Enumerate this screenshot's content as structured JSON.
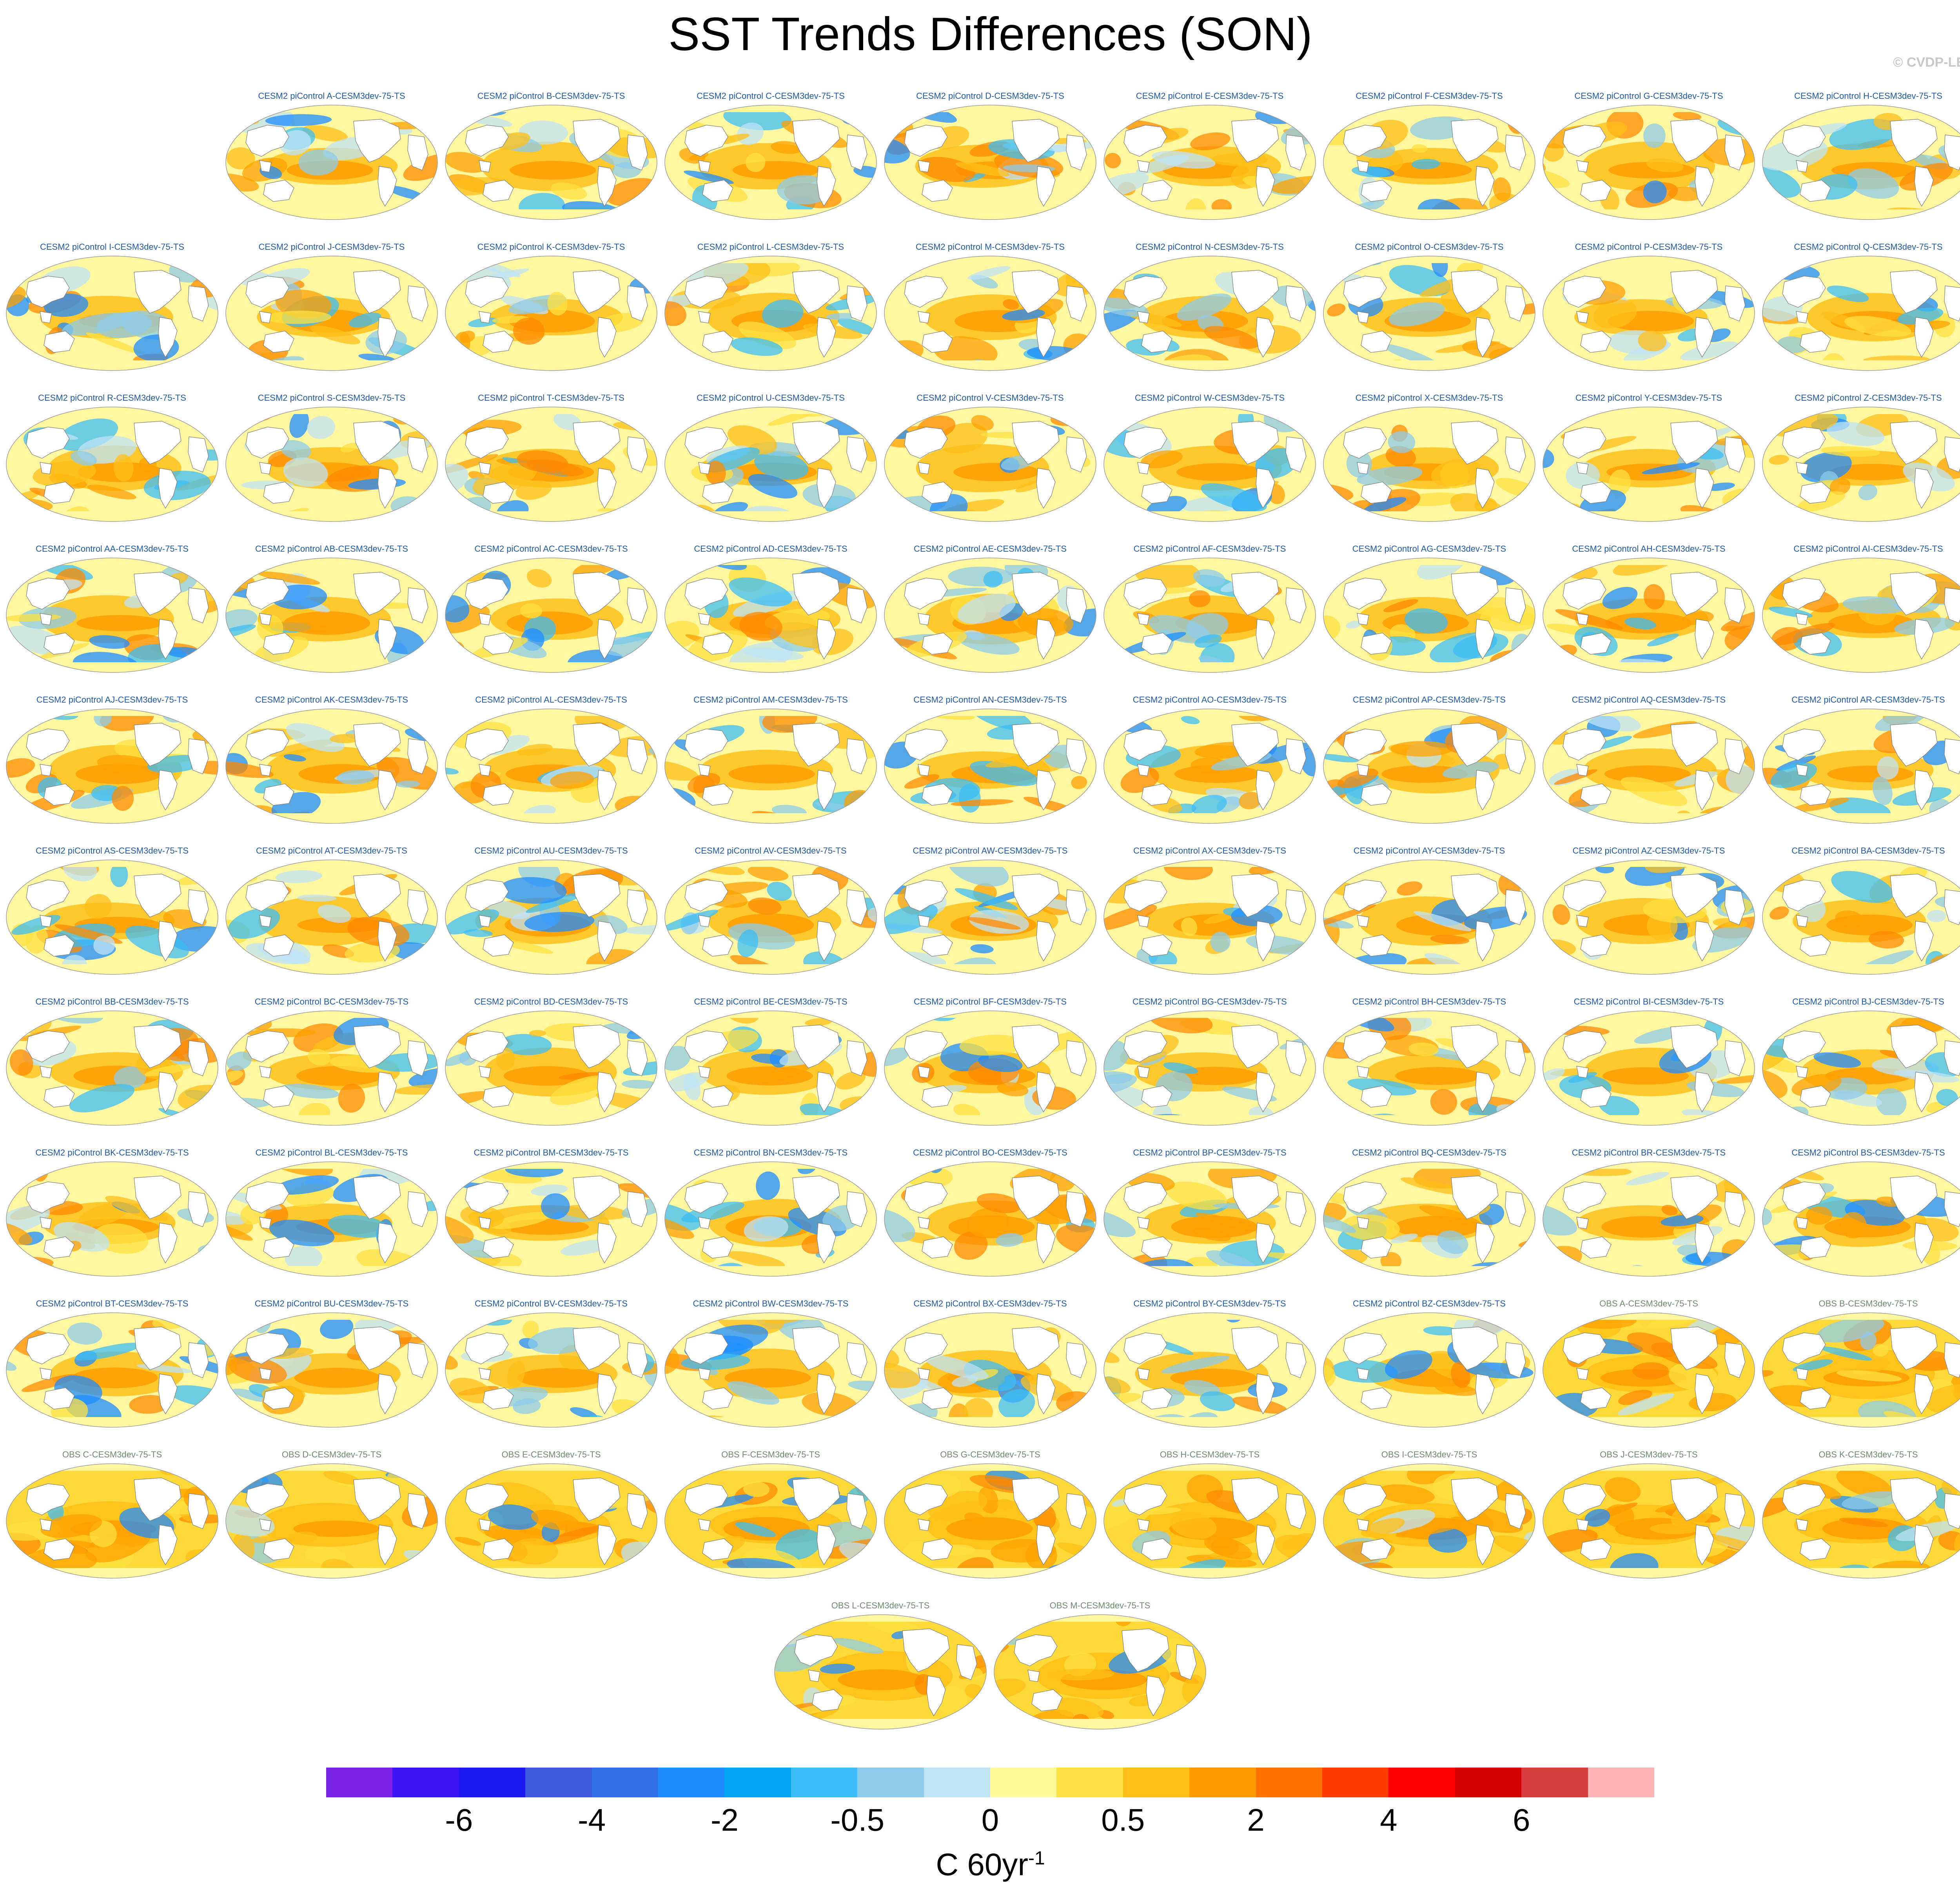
{
  "title": "SST Trends Differences (SON)",
  "copyright": "© CVDP-LE",
  "units": {
    "base": "C 60yr",
    "exponent": "-1"
  },
  "colorbar": {
    "colors": [
      "#7b22e8",
      "#3b13f2",
      "#1a1af0",
      "#3f58e0",
      "#2e6fe6",
      "#1e8cff",
      "#00a6f0",
      "#3cbdf5",
      "#8ccbe9",
      "#bde3f5",
      "#fff99c",
      "#ffe040",
      "#ffbf18",
      "#ff9a00",
      "#ff7200",
      "#ff3c00",
      "#ff0000",
      "#d40000",
      "#d63c3c",
      "#ffb4b4"
    ],
    "tick_labels": [
      "-6",
      "-4",
      "-2",
      "-0.5",
      "0",
      "0.5",
      "2",
      "4",
      "6"
    ]
  },
  "panels": [
    {
      "label": "CESM2 piControl A-CESM3dev-75-TS",
      "kind": "model"
    },
    {
      "label": "CESM2 piControl B-CESM3dev-75-TS",
      "kind": "model"
    },
    {
      "label": "CESM2 piControl C-CESM3dev-75-TS",
      "kind": "model"
    },
    {
      "label": "CESM2 piControl D-CESM3dev-75-TS",
      "kind": "model"
    },
    {
      "label": "CESM2 piControl E-CESM3dev-75-TS",
      "kind": "model"
    },
    {
      "label": "CESM2 piControl F-CESM3dev-75-TS",
      "kind": "model"
    },
    {
      "label": "CESM2 piControl G-CESM3dev-75-TS",
      "kind": "model"
    },
    {
      "label": "CESM2 piControl H-CESM3dev-75-TS",
      "kind": "model"
    },
    {
      "label": "CESM2 piControl I-CESM3dev-75-TS",
      "kind": "model"
    },
    {
      "label": "CESM2 piControl J-CESM3dev-75-TS",
      "kind": "model"
    },
    {
      "label": "CESM2 piControl K-CESM3dev-75-TS",
      "kind": "model"
    },
    {
      "label": "CESM2 piControl L-CESM3dev-75-TS",
      "kind": "model"
    },
    {
      "label": "CESM2 piControl M-CESM3dev-75-TS",
      "kind": "model"
    },
    {
      "label": "CESM2 piControl N-CESM3dev-75-TS",
      "kind": "model"
    },
    {
      "label": "CESM2 piControl O-CESM3dev-75-TS",
      "kind": "model"
    },
    {
      "label": "CESM2 piControl P-CESM3dev-75-TS",
      "kind": "model"
    },
    {
      "label": "CESM2 piControl Q-CESM3dev-75-TS",
      "kind": "model"
    },
    {
      "label": "CESM2 piControl R-CESM3dev-75-TS",
      "kind": "model"
    },
    {
      "label": "CESM2 piControl S-CESM3dev-75-TS",
      "kind": "model"
    },
    {
      "label": "CESM2 piControl T-CESM3dev-75-TS",
      "kind": "model"
    },
    {
      "label": "CESM2 piControl U-CESM3dev-75-TS",
      "kind": "model"
    },
    {
      "label": "CESM2 piControl V-CESM3dev-75-TS",
      "kind": "model"
    },
    {
      "label": "CESM2 piControl W-CESM3dev-75-TS",
      "kind": "model"
    },
    {
      "label": "CESM2 piControl X-CESM3dev-75-TS",
      "kind": "model"
    },
    {
      "label": "CESM2 piControl Y-CESM3dev-75-TS",
      "kind": "model"
    },
    {
      "label": "CESM2 piControl Z-CESM3dev-75-TS",
      "kind": "model"
    },
    {
      "label": "CESM2 piControl AA-CESM3dev-75-TS",
      "kind": "model"
    },
    {
      "label": "CESM2 piControl AB-CESM3dev-75-TS",
      "kind": "model"
    },
    {
      "label": "CESM2 piControl AC-CESM3dev-75-TS",
      "kind": "model"
    },
    {
      "label": "CESM2 piControl AD-CESM3dev-75-TS",
      "kind": "model"
    },
    {
      "label": "CESM2 piControl AE-CESM3dev-75-TS",
      "kind": "model"
    },
    {
      "label": "CESM2 piControl AF-CESM3dev-75-TS",
      "kind": "model"
    },
    {
      "label": "CESM2 piControl AG-CESM3dev-75-TS",
      "kind": "model"
    },
    {
      "label": "CESM2 piControl AH-CESM3dev-75-TS",
      "kind": "model"
    },
    {
      "label": "CESM2 piControl AI-CESM3dev-75-TS",
      "kind": "model"
    },
    {
      "label": "CESM2 piControl AJ-CESM3dev-75-TS",
      "kind": "model"
    },
    {
      "label": "CESM2 piControl AK-CESM3dev-75-TS",
      "kind": "model"
    },
    {
      "label": "CESM2 piControl AL-CESM3dev-75-TS",
      "kind": "model"
    },
    {
      "label": "CESM2 piControl AM-CESM3dev-75-TS",
      "kind": "model"
    },
    {
      "label": "CESM2 piControl AN-CESM3dev-75-TS",
      "kind": "model"
    },
    {
      "label": "CESM2 piControl AO-CESM3dev-75-TS",
      "kind": "model"
    },
    {
      "label": "CESM2 piControl AP-CESM3dev-75-TS",
      "kind": "model"
    },
    {
      "label": "CESM2 piControl AQ-CESM3dev-75-TS",
      "kind": "model"
    },
    {
      "label": "CESM2 piControl AR-CESM3dev-75-TS",
      "kind": "model"
    },
    {
      "label": "CESM2 piControl AS-CESM3dev-75-TS",
      "kind": "model"
    },
    {
      "label": "CESM2 piControl AT-CESM3dev-75-TS",
      "kind": "model"
    },
    {
      "label": "CESM2 piControl AU-CESM3dev-75-TS",
      "kind": "model"
    },
    {
      "label": "CESM2 piControl AV-CESM3dev-75-TS",
      "kind": "model"
    },
    {
      "label": "CESM2 piControl AW-CESM3dev-75-TS",
      "kind": "model"
    },
    {
      "label": "CESM2 piControl AX-CESM3dev-75-TS",
      "kind": "model"
    },
    {
      "label": "CESM2 piControl AY-CESM3dev-75-TS",
      "kind": "model"
    },
    {
      "label": "CESM2 piControl AZ-CESM3dev-75-TS",
      "kind": "model"
    },
    {
      "label": "CESM2 piControl BA-CESM3dev-75-TS",
      "kind": "model"
    },
    {
      "label": "CESM2 piControl BB-CESM3dev-75-TS",
      "kind": "model"
    },
    {
      "label": "CESM2 piControl BC-CESM3dev-75-TS",
      "kind": "model"
    },
    {
      "label": "CESM2 piControl BD-CESM3dev-75-TS",
      "kind": "model"
    },
    {
      "label": "CESM2 piControl BE-CESM3dev-75-TS",
      "kind": "model"
    },
    {
      "label": "CESM2 piControl BF-CESM3dev-75-TS",
      "kind": "model"
    },
    {
      "label": "CESM2 piControl BG-CESM3dev-75-TS",
      "kind": "model"
    },
    {
      "label": "CESM2 piControl BH-CESM3dev-75-TS",
      "kind": "model"
    },
    {
      "label": "CESM2 piControl BI-CESM3dev-75-TS",
      "kind": "model"
    },
    {
      "label": "CESM2 piControl BJ-CESM3dev-75-TS",
      "kind": "model"
    },
    {
      "label": "CESM2 piControl BK-CESM3dev-75-TS",
      "kind": "model"
    },
    {
      "label": "CESM2 piControl BL-CESM3dev-75-TS",
      "kind": "model"
    },
    {
      "label": "CESM2 piControl BM-CESM3dev-75-TS",
      "kind": "model"
    },
    {
      "label": "CESM2 piControl BN-CESM3dev-75-TS",
      "kind": "model"
    },
    {
      "label": "CESM2 piControl BO-CESM3dev-75-TS",
      "kind": "model"
    },
    {
      "label": "CESM2 piControl BP-CESM3dev-75-TS",
      "kind": "model"
    },
    {
      "label": "CESM2 piControl BQ-CESM3dev-75-TS",
      "kind": "model"
    },
    {
      "label": "CESM2 piControl BR-CESM3dev-75-TS",
      "kind": "model"
    },
    {
      "label": "CESM2 piControl BS-CESM3dev-75-TS",
      "kind": "model"
    },
    {
      "label": "CESM2 piControl BT-CESM3dev-75-TS",
      "kind": "model"
    },
    {
      "label": "CESM2 piControl BU-CESM3dev-75-TS",
      "kind": "model"
    },
    {
      "label": "CESM2 piControl BV-CESM3dev-75-TS",
      "kind": "model"
    },
    {
      "label": "CESM2 piControl BW-CESM3dev-75-TS",
      "kind": "model"
    },
    {
      "label": "CESM2 piControl BX-CESM3dev-75-TS",
      "kind": "model"
    },
    {
      "label": "CESM2 piControl BY-CESM3dev-75-TS",
      "kind": "model"
    },
    {
      "label": "CESM2 piControl BZ-CESM3dev-75-TS",
      "kind": "model"
    },
    {
      "label": "OBS A-CESM3dev-75-TS",
      "kind": "obs"
    },
    {
      "label": "OBS B-CESM3dev-75-TS",
      "kind": "obs"
    },
    {
      "label": "OBS C-CESM3dev-75-TS",
      "kind": "obs"
    },
    {
      "label": "OBS D-CESM3dev-75-TS",
      "kind": "obs"
    },
    {
      "label": "OBS E-CESM3dev-75-TS",
      "kind": "obs"
    },
    {
      "label": "OBS F-CESM3dev-75-TS",
      "kind": "obs"
    },
    {
      "label": "OBS G-CESM3dev-75-TS",
      "kind": "obs"
    },
    {
      "label": "OBS H-CESM3dev-75-TS",
      "kind": "obs"
    },
    {
      "label": "OBS I-CESM3dev-75-TS",
      "kind": "obs"
    },
    {
      "label": "OBS J-CESM3dev-75-TS",
      "kind": "obs"
    },
    {
      "label": "OBS K-CESM3dev-75-TS",
      "kind": "obs"
    },
    {
      "label": "OBS L-CESM3dev-75-TS",
      "kind": "obs"
    },
    {
      "label": "OBS M-CESM3dev-75-TS",
      "kind": "obs"
    }
  ]
}
